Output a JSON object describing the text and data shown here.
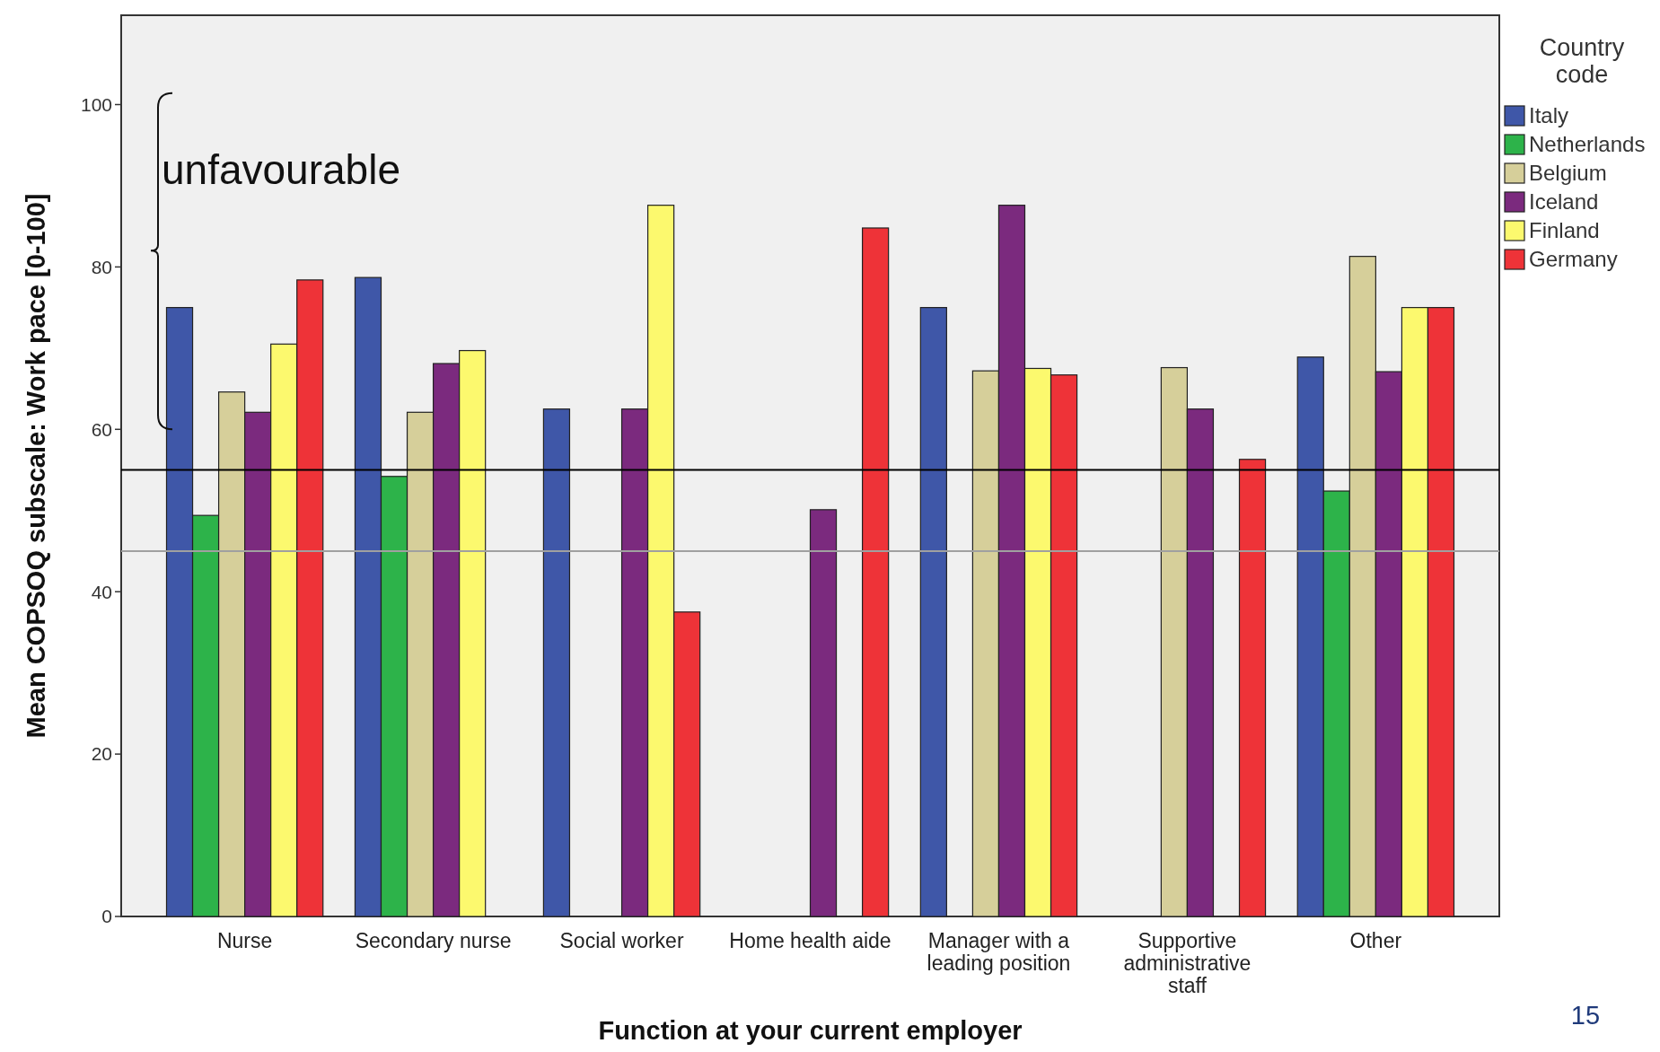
{
  "chart_data": {
    "type": "bar",
    "xlabel": "Function at your current employer",
    "ylabel": "Mean COPSOQ subscale: Work pace [0-100]",
    "legend_title": "Country code",
    "legend": "right",
    "grid": false,
    "categories": [
      "Nurse",
      "Secondary nurse",
      "Social worker",
      "Home health aide",
      "Manager with a leading position",
      "Supportive administrative staff",
      "Other"
    ],
    "series": [
      {
        "name": "Italy",
        "color": "#3f57a8",
        "values": [
          75.0,
          78.7,
          62.5,
          null,
          75.0,
          null,
          68.9
        ]
      },
      {
        "name": "Netherlands",
        "color": "#2db34a",
        "values": [
          49.4,
          54.2,
          null,
          null,
          null,
          null,
          52.4
        ]
      },
      {
        "name": "Belgium",
        "color": "#d6cf9a",
        "values": [
          64.6,
          62.1,
          null,
          null,
          67.2,
          67.6,
          81.3
        ]
      },
      {
        "name": "Iceland",
        "color": "#7b2a7e",
        "values": [
          62.1,
          68.1,
          62.5,
          50.1,
          87.6,
          62.5,
          67.1
        ]
      },
      {
        "name": "Finland",
        "color": "#fcf96e",
        "values": [
          70.5,
          69.7,
          87.6,
          null,
          67.5,
          null,
          75.0
        ]
      },
      {
        "name": "Germany",
        "color": "#ee3338",
        "values": [
          78.4,
          null,
          37.5,
          84.8,
          66.7,
          56.3,
          75.0
        ]
      }
    ],
    "ylim": [
      0,
      111
    ],
    "yticks": [
      0,
      20,
      40,
      60,
      80,
      100
    ],
    "ref_lines": [
      {
        "axis": "y",
        "value": 55,
        "color": "#000000"
      },
      {
        "axis": "y",
        "value": 45,
        "color": "#a0a0a0"
      }
    ],
    "annotations": [
      "unfavourable",
      "15"
    ]
  }
}
